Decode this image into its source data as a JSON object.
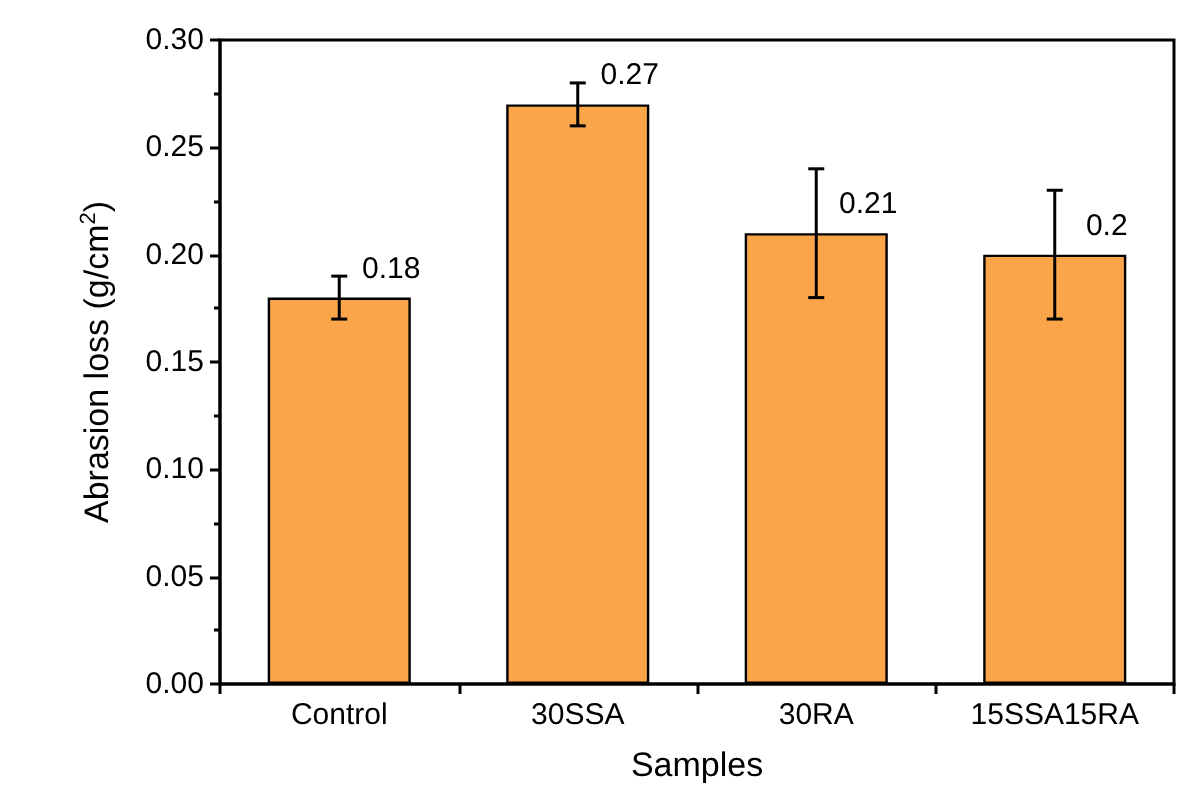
{
  "chart_data": {
    "type": "bar",
    "xlabel": "Samples",
    "ylabel": "Abrasion loss (g/cm$^{2}$)",
    "categories": [
      "Control",
      "30SSA",
      "30RA",
      "15SSA15RA"
    ],
    "values": [
      0.18,
      0.27,
      0.21,
      0.2
    ],
    "errors": [
      0.01,
      0.01,
      0.03,
      0.03
    ],
    "color": "#fba54a",
    "ylim": [
      0,
      0.3
    ],
    "yticks": [
      {
        "value": 0,
        "label": "0.00"
      },
      {
        "value": 0.05,
        "label": "0.05"
      },
      {
        "value": 0.1,
        "label": "0.10"
      },
      {
        "value": 0.15,
        "label": "0.15"
      },
      {
        "value": 0.2,
        "label": "0.20"
      },
      {
        "value": 0.25,
        "label": "0.25"
      },
      {
        "value": 0.3,
        "label": "0.30"
      }
    ],
    "data_labels": true
  }
}
